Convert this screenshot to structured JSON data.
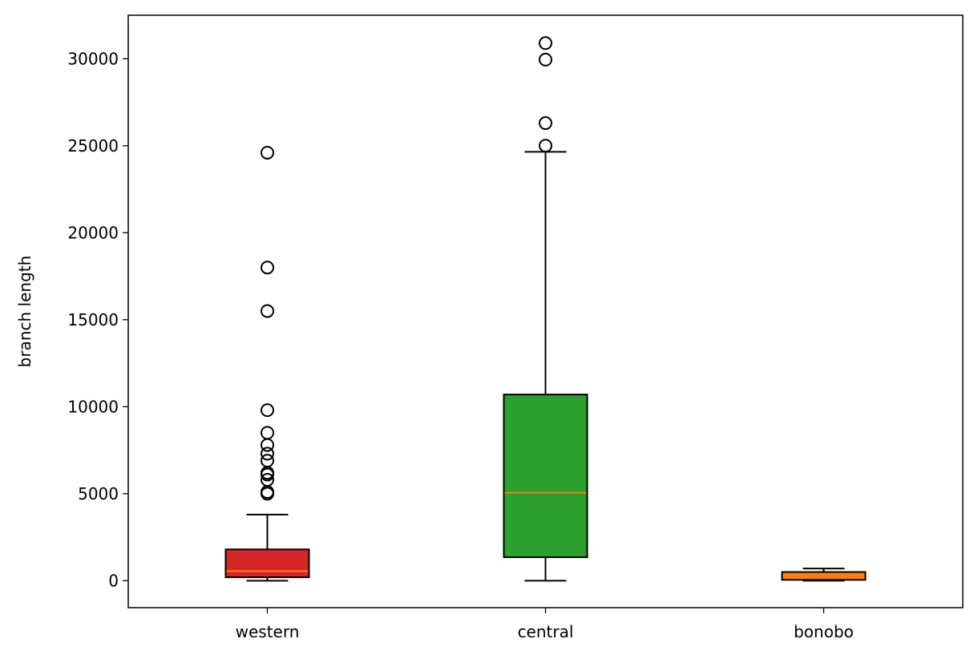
{
  "chart_data": {
    "type": "box",
    "title": "",
    "xlabel": "",
    "ylabel": "branch length",
    "ylim": [
      -1550,
      32500
    ],
    "yticks": [
      0,
      5000,
      10000,
      15000,
      20000,
      25000,
      30000
    ],
    "yticklabels": [
      "0",
      "5000",
      "10000",
      "15000",
      "20000",
      "25000",
      "30000"
    ],
    "grid": false,
    "legend": "none",
    "categories": [
      "western",
      "central",
      "bonobo"
    ],
    "boxes": [
      {
        "name": "western",
        "color": "#d62728",
        "whisker_low": 0,
        "q1": 200,
        "median": 550,
        "q3": 1800,
        "whisker_high": 3800,
        "outliers": [
          5000,
          5100,
          5800,
          6100,
          6200,
          6900,
          7300,
          7800,
          8500,
          9800,
          15500,
          18000,
          24600
        ]
      },
      {
        "name": "central",
        "color": "#2ca02c",
        "whisker_low": 0,
        "q1": 1350,
        "median": 5050,
        "q3": 10700,
        "whisker_high": 24650,
        "outliers": [
          25000,
          26300,
          29950,
          30900
        ]
      },
      {
        "name": "bonobo",
        "color": "#ff7f0e",
        "whisker_low": 0,
        "q1": 50,
        "median": 250,
        "q3": 500,
        "whisker_high": 700,
        "outliers": []
      }
    ],
    "median_color": "#ff7f0e"
  }
}
